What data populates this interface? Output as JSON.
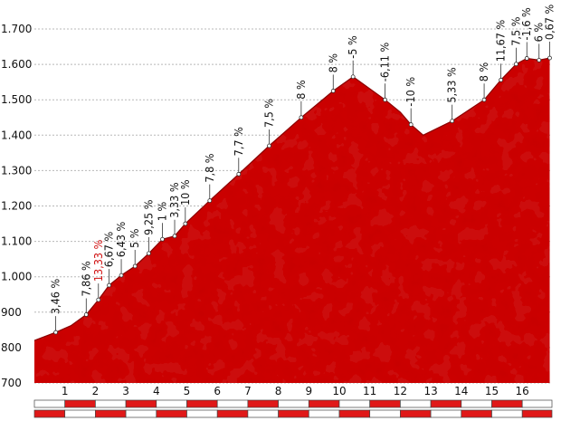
{
  "chart_data": {
    "type": "area",
    "title": "",
    "xlabel": "",
    "ylabel": "",
    "xlim": [
      0,
      16.9
    ],
    "ylim": [
      700,
      1700
    ],
    "yticks": [
      "700",
      "800",
      "900",
      "1.000",
      "1.100",
      "1.200",
      "1.300",
      "1.400",
      "1.500",
      "1.600",
      "1.700"
    ],
    "xticks": [
      "1",
      "2",
      "3",
      "4",
      "5",
      "6",
      "7",
      "8",
      "9",
      "10",
      "11",
      "12",
      "13",
      "14",
      "15",
      "16"
    ],
    "grid": true,
    "fill_color": "#cc1111",
    "km_bar_colors": [
      "#e01818",
      "#ffffff"
    ],
    "profile": [
      {
        "x": 0,
        "y": 820
      },
      {
        "x": 0.7,
        "y": 843
      },
      {
        "x": 1.2,
        "y": 862
      },
      {
        "x": 1.7,
        "y": 893
      },
      {
        "x": 2.1,
        "y": 935
      },
      {
        "x": 2.45,
        "y": 976
      },
      {
        "x": 2.85,
        "y": 1004
      },
      {
        "x": 3.3,
        "y": 1030
      },
      {
        "x": 3.75,
        "y": 1066
      },
      {
        "x": 4.2,
        "y": 1106
      },
      {
        "x": 4.6,
        "y": 1115
      },
      {
        "x": 4.95,
        "y": 1150
      },
      {
        "x": 5.75,
        "y": 1215
      },
      {
        "x": 6.7,
        "y": 1290
      },
      {
        "x": 7.7,
        "y": 1370
      },
      {
        "x": 8.75,
        "y": 1450
      },
      {
        "x": 9.8,
        "y": 1525
      },
      {
        "x": 10.45,
        "y": 1565
      },
      {
        "x": 11.5,
        "y": 1500
      },
      {
        "x": 12.0,
        "y": 1465
      },
      {
        "x": 12.35,
        "y": 1430
      },
      {
        "x": 12.75,
        "y": 1400
      },
      {
        "x": 13.7,
        "y": 1440
      },
      {
        "x": 14.75,
        "y": 1500
      },
      {
        "x": 15.3,
        "y": 1556
      },
      {
        "x": 15.8,
        "y": 1601
      },
      {
        "x": 16.15,
        "y": 1617
      },
      {
        "x": 16.55,
        "y": 1612
      },
      {
        "x": 16.9,
        "y": 1618
      }
    ],
    "markers": [
      {
        "x": 0.7,
        "y": 843,
        "label": "3,46 %"
      },
      {
        "x": 1.7,
        "y": 893,
        "label": "7,86 %"
      },
      {
        "x": 2.1,
        "y": 935,
        "label": "13,33 %",
        "highlight": true
      },
      {
        "x": 2.45,
        "y": 976,
        "label": "6,67 %"
      },
      {
        "x": 2.85,
        "y": 1004,
        "label": "6,43 %"
      },
      {
        "x": 3.3,
        "y": 1030,
        "label": "5 %"
      },
      {
        "x": 3.75,
        "y": 1066,
        "label": "9,25 %"
      },
      {
        "x": 4.2,
        "y": 1106,
        "label": "1 %"
      },
      {
        "x": 4.6,
        "y": 1115,
        "label": "3,33 %"
      },
      {
        "x": 4.95,
        "y": 1150,
        "label": "10 %"
      },
      {
        "x": 5.75,
        "y": 1215,
        "label": "7,8 %"
      },
      {
        "x": 6.7,
        "y": 1290,
        "label": "7,7 %"
      },
      {
        "x": 7.7,
        "y": 1370,
        "label": "7,5 %"
      },
      {
        "x": 8.75,
        "y": 1450,
        "label": "8 %"
      },
      {
        "x": 9.8,
        "y": 1525,
        "label": "8 %"
      },
      {
        "x": 10.45,
        "y": 1565,
        "label": "-5 %"
      },
      {
        "x": 11.5,
        "y": 1500,
        "label": "-6,11 %"
      },
      {
        "x": 12.35,
        "y": 1430,
        "label": "-10 %"
      },
      {
        "x": 13.7,
        "y": 1440,
        "label": "5,33 %"
      },
      {
        "x": 14.75,
        "y": 1500,
        "label": "8 %"
      },
      {
        "x": 15.3,
        "y": 1556,
        "label": "11,67 %"
      },
      {
        "x": 15.8,
        "y": 1601,
        "label": "7,5 %"
      },
      {
        "x": 16.15,
        "y": 1617,
        "label": "-1,6 %"
      },
      {
        "x": 16.55,
        "y": 1612,
        "label": "6 %"
      },
      {
        "x": 16.9,
        "y": 1618,
        "label": "0,67 %"
      }
    ]
  }
}
